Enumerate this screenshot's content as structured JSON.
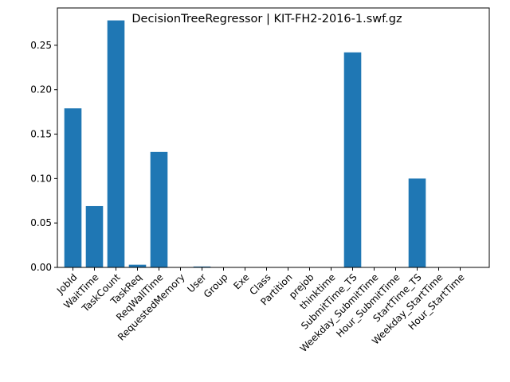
{
  "chart_data": {
    "type": "bar",
    "title": "DecisionTreeRegressor | KIT-FH2-2016-1.swf.gz",
    "xlabel": "",
    "ylabel": "",
    "categories": [
      "JobId",
      "WaitTime",
      "TaskCount",
      "TaskReq",
      "ReqWallTime",
      "RequestedMemory",
      "User",
      "Group",
      "Exe",
      "Class",
      "Partition",
      "prejob",
      "thinktime",
      "SubmitTime_TS",
      "Weekday_SubmitTime",
      "Hour_SubmitTime",
      "StartTime_TS",
      "Weekday_StartTime",
      "Hour_StartTime"
    ],
    "values": [
      0.179,
      0.069,
      0.278,
      0.003,
      0.13,
      0.0,
      0.001,
      0.0,
      0.0,
      0.0,
      0.0,
      0.0,
      0.0,
      0.242,
      0.0,
      0.0,
      0.1,
      0.0,
      0.0
    ],
    "ylim": [
      0,
      0.292
    ],
    "yticks": [
      "0.00",
      "0.05",
      "0.10",
      "0.15",
      "0.20",
      "0.25"
    ],
    "bar_color": "#1f77b4",
    "grid": false,
    "legend": "none"
  }
}
